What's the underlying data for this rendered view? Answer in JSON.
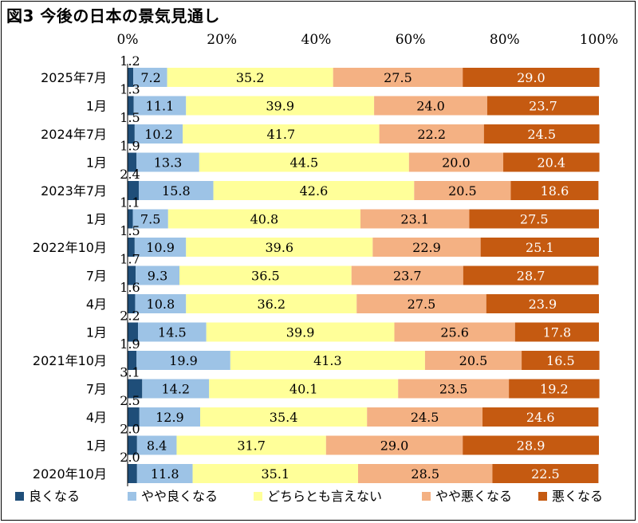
{
  "chart_data": {
    "type": "bar",
    "orientation": "horizontal",
    "stacked": "percent",
    "title": "図3 今後の日本の景気見通し",
    "xlim": [
      0,
      100
    ],
    "x_ticks": [
      "0%",
      "20%",
      "40%",
      "60%",
      "80%",
      "100%"
    ],
    "grid": false,
    "legend_position": "bottom",
    "categories": [
      "2025年7月",
      "1月",
      "2024年7月",
      "1月",
      "2023年7月",
      "1月",
      "2022年10月",
      "7月",
      "4月",
      "1月",
      "2021年10月",
      "7月",
      "4月",
      "1月",
      "2020年10月"
    ],
    "series": [
      {
        "name": "良くなる",
        "color": "#1f4e79",
        "values": [
          1.2,
          1.3,
          1.5,
          1.9,
          2.4,
          1.1,
          1.5,
          1.7,
          1.6,
          2.2,
          1.9,
          3.1,
          2.5,
          2.0,
          2.0
        ]
      },
      {
        "name": "やや良くなる",
        "color": "#9dc3e6",
        "values": [
          7.2,
          11.1,
          10.2,
          13.3,
          15.8,
          7.5,
          10.9,
          9.3,
          10.8,
          14.5,
          19.9,
          14.2,
          12.9,
          8.4,
          11.8
        ]
      },
      {
        "name": "どちらとも言えない",
        "color": "#ffff99",
        "values": [
          35.2,
          39.9,
          41.7,
          44.5,
          42.6,
          40.8,
          39.6,
          36.5,
          36.2,
          39.9,
          41.3,
          40.1,
          35.4,
          31.7,
          35.1
        ]
      },
      {
        "name": "やや悪くなる",
        "color": "#f4b183",
        "values": [
          27.5,
          24.0,
          22.2,
          20.0,
          20.5,
          23.1,
          22.9,
          23.7,
          27.5,
          25.6,
          20.5,
          23.5,
          24.5,
          29.0,
          28.5
        ]
      },
      {
        "name": "悪くなる",
        "color": "#c55a11",
        "values": [
          29.0,
          23.7,
          24.5,
          20.4,
          18.6,
          27.5,
          25.1,
          28.7,
          23.9,
          17.8,
          16.5,
          19.2,
          24.6,
          28.9,
          22.5
        ]
      }
    ]
  }
}
